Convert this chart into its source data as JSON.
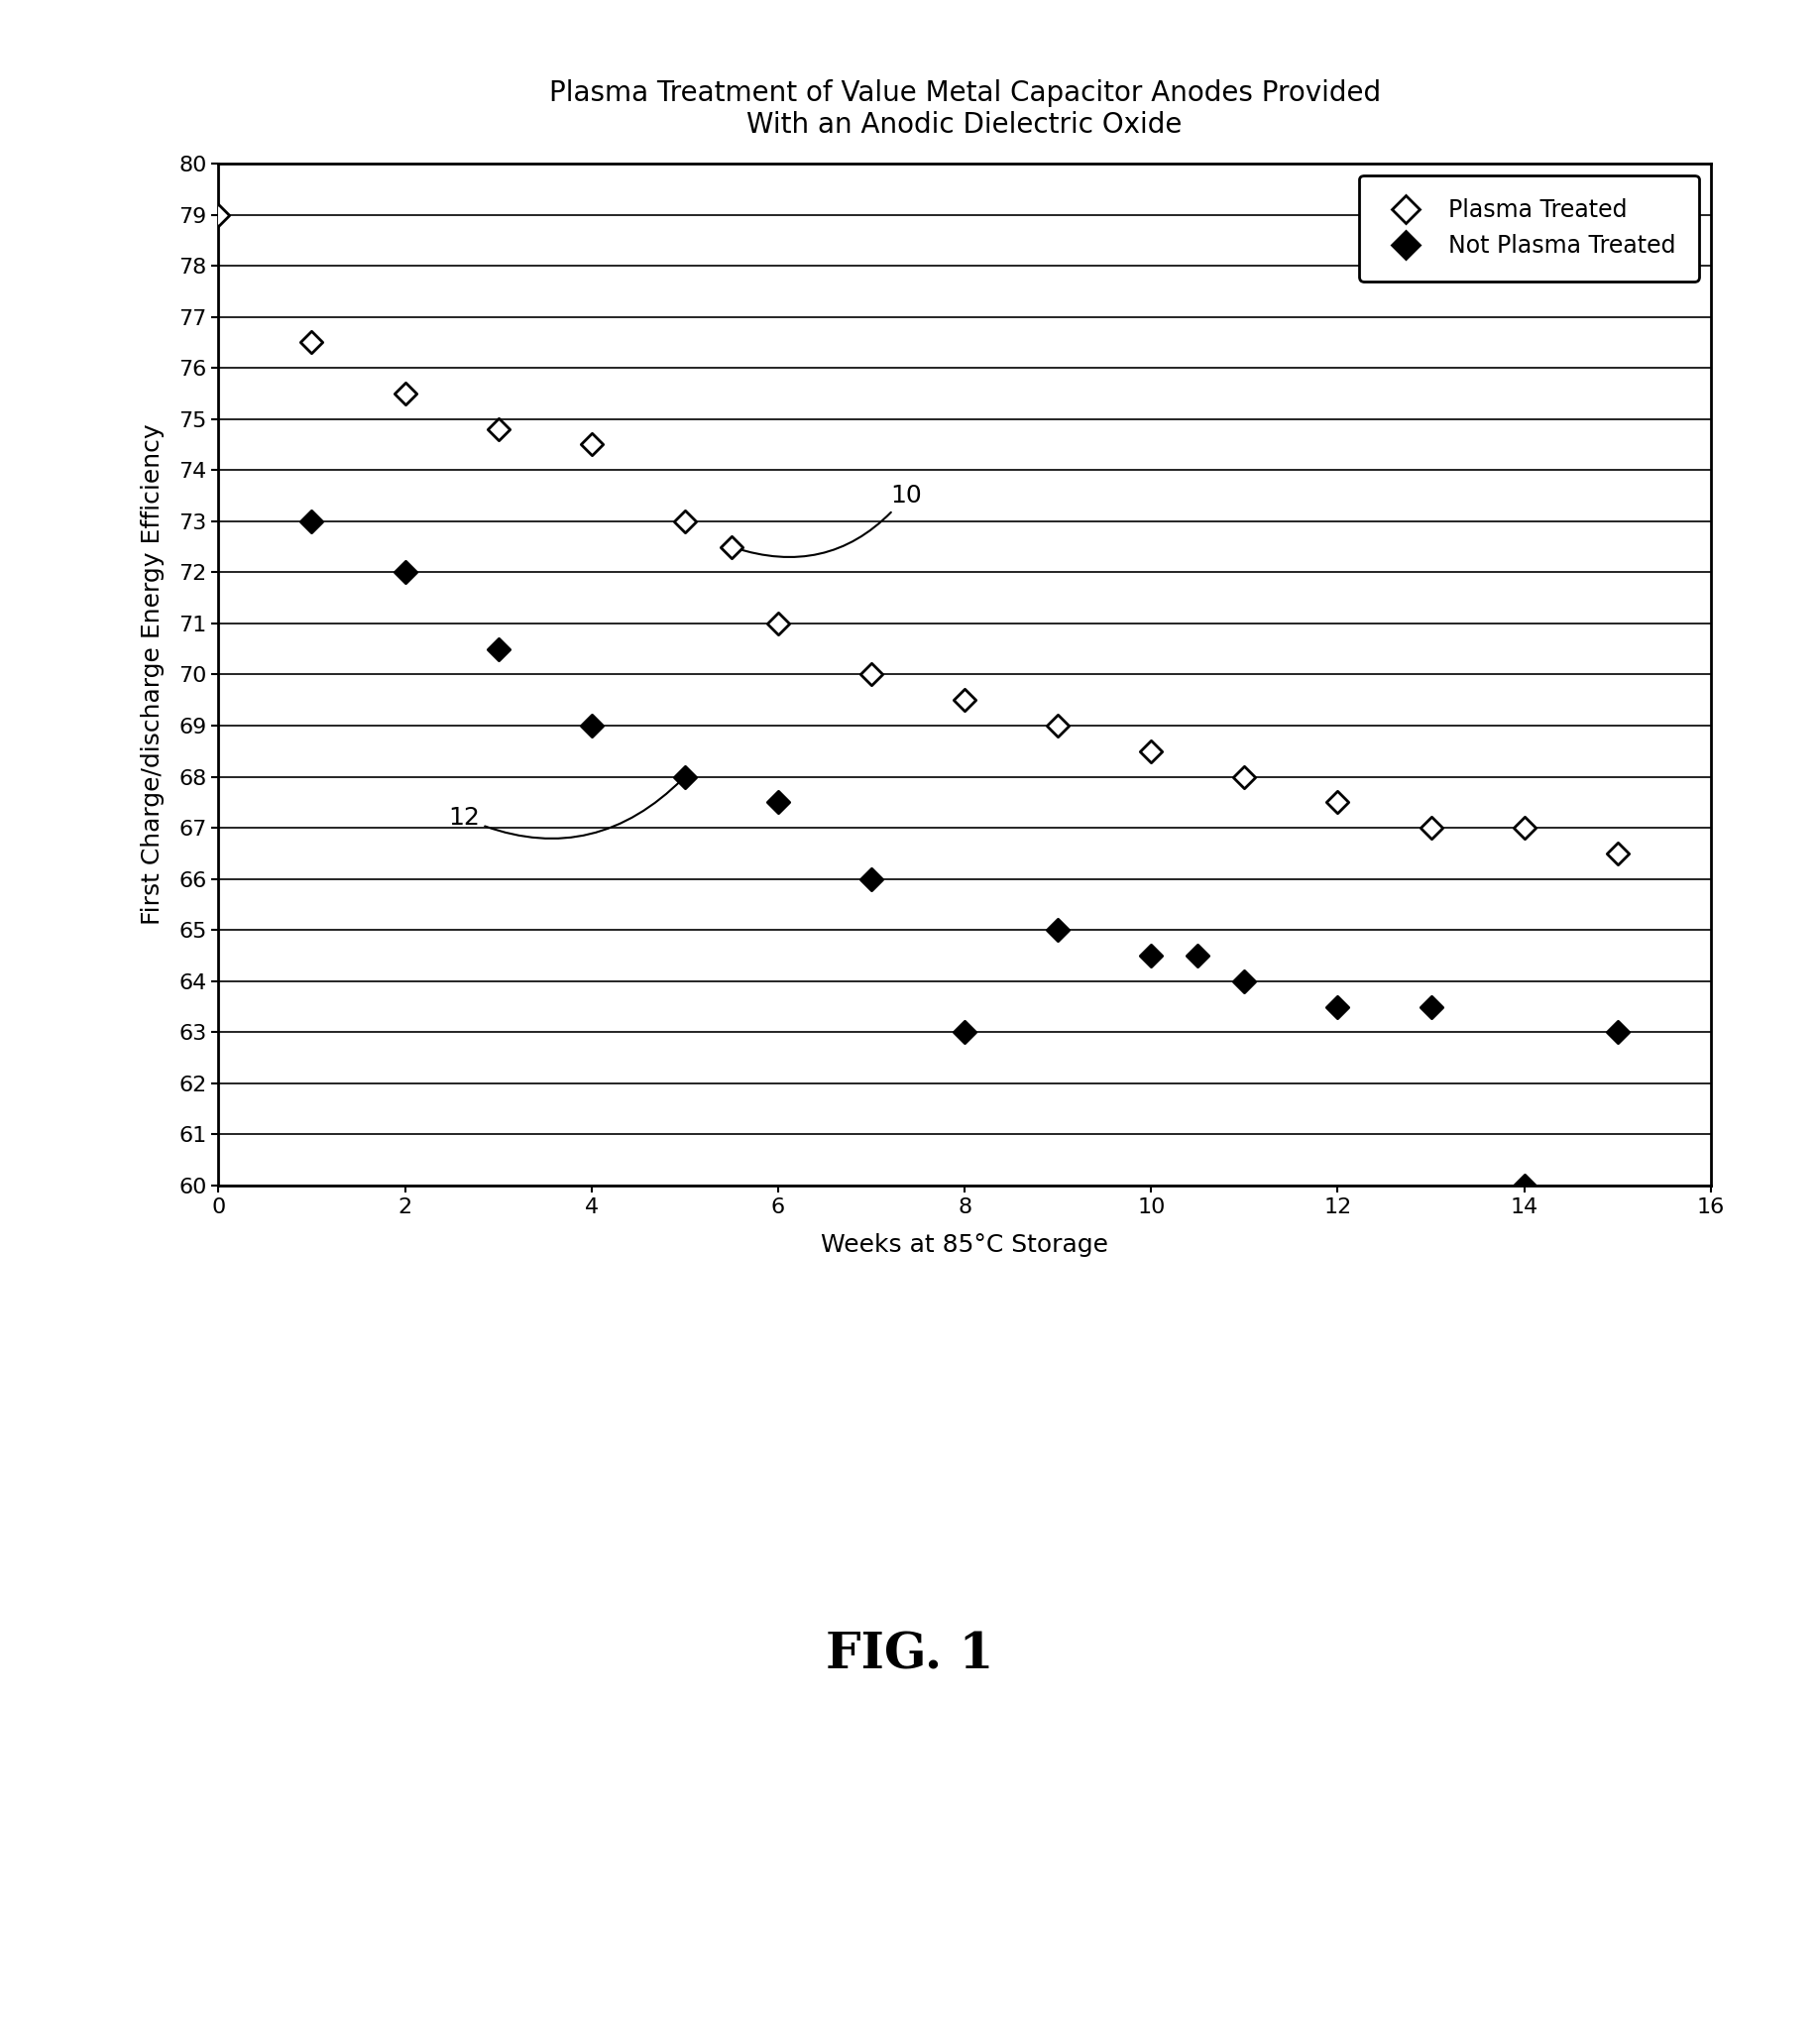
{
  "title": "Plasma Treatment of Value Metal Capacitor Anodes Provided\nWith an Anodic Dielectric Oxide",
  "xlabel": "Weeks at 85°C Storage",
  "ylabel": "First Charge/discharge Energy Efficiency",
  "xlim": [
    0,
    16
  ],
  "ylim": [
    60,
    80
  ],
  "yticks": [
    60,
    61,
    62,
    63,
    64,
    65,
    66,
    67,
    68,
    69,
    70,
    71,
    72,
    73,
    74,
    75,
    76,
    77,
    78,
    79,
    80
  ],
  "xticks": [
    0,
    2,
    4,
    6,
    8,
    10,
    12,
    14,
    16
  ],
  "plasma_treated_x": [
    0,
    1,
    2,
    3,
    4,
    5,
    5.5,
    6,
    7,
    8,
    9,
    10,
    11,
    12,
    13,
    14,
    15
  ],
  "plasma_treated_y": [
    79,
    76.5,
    75.5,
    74.8,
    74.5,
    73.0,
    72.5,
    71.0,
    70.0,
    69.5,
    69.0,
    68.5,
    68.0,
    67.5,
    67.0,
    67.0,
    66.5
  ],
  "not_plasma_x": [
    1,
    2,
    3,
    4,
    5,
    6,
    7,
    8,
    9,
    10,
    10.5,
    11,
    12,
    13,
    14,
    15
  ],
  "not_plasma_y": [
    73.0,
    72.0,
    70.5,
    69.0,
    68.0,
    67.5,
    66.0,
    63.0,
    65.0,
    64.5,
    64.5,
    64.0,
    63.5,
    63.5,
    60.0,
    63.0
  ],
  "legend_plasma_label": "Plasma Treated",
  "legend_not_plasma_label": "Not Plasma Treated",
  "fig_label": "FIG. 1",
  "background_color": "#ffffff",
  "marker_size": 130,
  "grid_linewidth": 1.2,
  "spine_linewidth": 2.0,
  "annotation_fontsize": 18,
  "title_fontsize": 20,
  "axis_label_fontsize": 18,
  "tick_fontsize": 16,
  "legend_fontsize": 17,
  "fig_label_fontsize": 36
}
